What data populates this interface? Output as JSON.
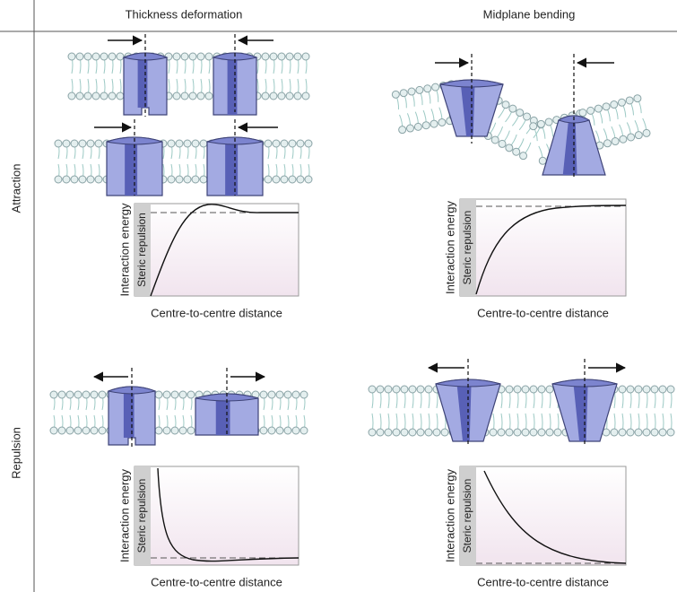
{
  "columns": [
    "Thickness deformation",
    "Midplane bending"
  ],
  "rows": [
    "Attraction",
    "Repulsion"
  ],
  "panels": [
    {
      "y_label": "Interaction energy",
      "steric_label": "Steric repulsion",
      "x_label": "Centre-to-centre distance"
    },
    {
      "y_label": "Interaction energy",
      "steric_label": "Steric repulsion",
      "x_label": "Centre-to-centre distance"
    },
    {
      "y_label": "Interaction energy",
      "steric_label": "Steric repulsion",
      "x_label": "Centre-to-centre distance"
    },
    {
      "y_label": "Interaction energy",
      "steric_label": "Steric repulsion",
      "x_label": "Centre-to-centre distance"
    }
  ]
}
